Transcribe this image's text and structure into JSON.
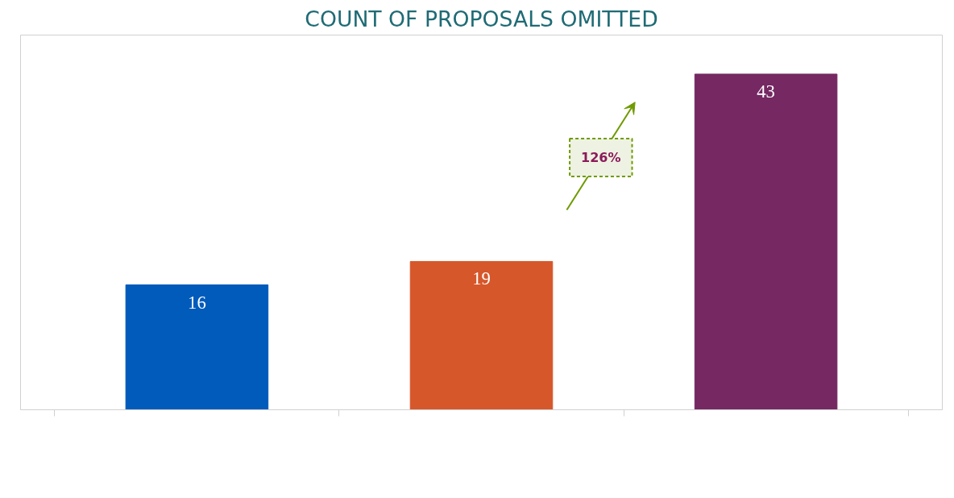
{
  "chart_data": {
    "type": "bar",
    "title": "COUNT OF PROPOSALS OMITTED",
    "categories": [
      null,
      null,
      null
    ],
    "values": [
      16,
      19,
      43
    ],
    "colors": [
      "#005bbb",
      "#d6572a",
      "#752862"
    ],
    "ylim": [
      0,
      48
    ],
    "data_labels": true,
    "tick_labels": false,
    "grid": false,
    "annotations": [
      "126%"
    ]
  }
}
